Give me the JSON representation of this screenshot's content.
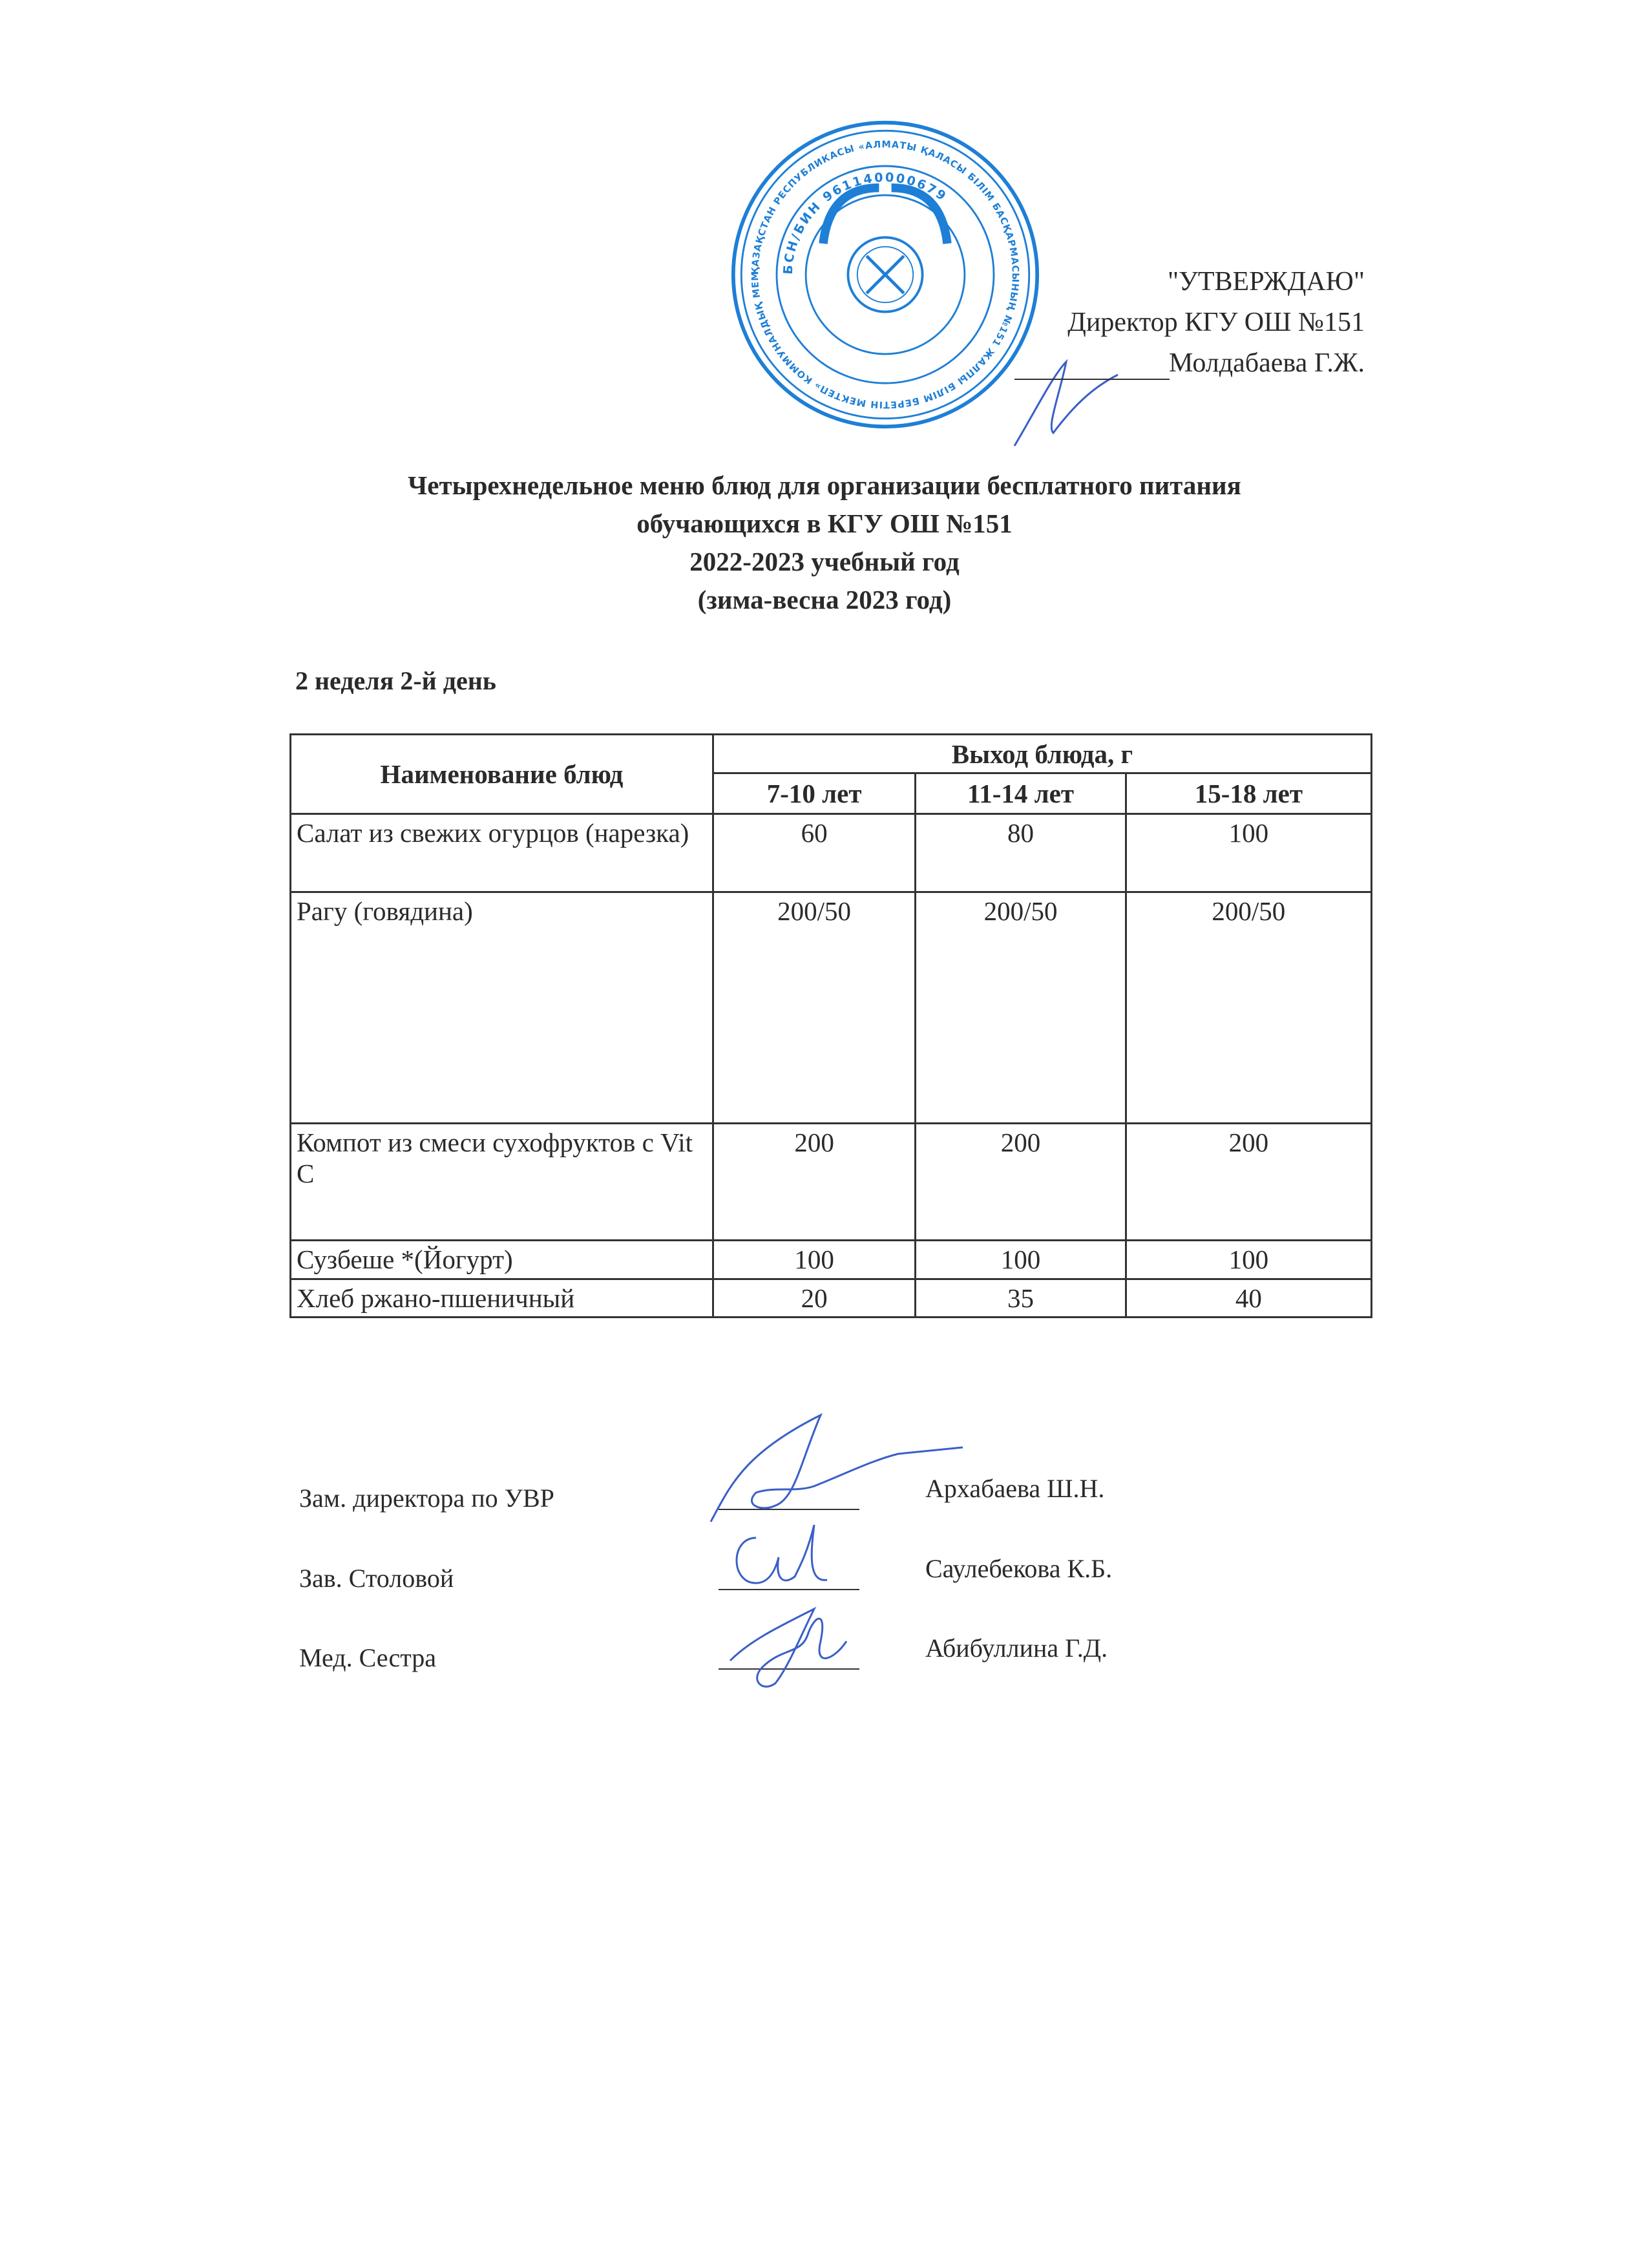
{
  "approval": {
    "line1": "\"УТВЕРЖДАЮ\"",
    "line2": "Директор КГУ ОШ №151",
    "line3": "Молдабаева Г.Ж."
  },
  "stamp": {
    "outer_text": "ҚАЗАҚСТАН РЕСПУБЛИКАСЫ «АЛМАТЫ ҚАЛАСЫ БІЛІМ БАСҚАРМАСЫНЫҢ №151 ЖАЛПЫ БІЛІМ БЕРЕТІН МЕКТЕП» КОММУНАЛДЫҚ МЕМЛЕКЕТТІК МЕКЕМЕСІ",
    "inner_text": "БСН/БИН 961140000679",
    "color": "#1e7fd6"
  },
  "title": {
    "line1": "Четырехнедельное меню блюд для организации бесплатного питания",
    "line2": "обучающихся в КГУ ОШ №151",
    "line3": "2022-2023 учебный год",
    "line4": "(зима-весна 2023 год)"
  },
  "day_label": "2 неделя 2-й день",
  "table": {
    "col_name": "Наименование блюд",
    "col_group": "Выход блюда, г",
    "age_groups": [
      "7-10 лет",
      "11-14 лет",
      "15-18 лет"
    ],
    "rows": [
      {
        "name": "Салат из свежих огурцов (нарезка)",
        "values": [
          "60",
          "80",
          "100"
        ]
      },
      {
        "name": "Рагу (говядина)",
        "values": [
          "200/50",
          "200/50",
          "200/50"
        ]
      },
      {
        "name": "Компот из смеси сухофруктов с Vit C",
        "values": [
          "200",
          "200",
          "200"
        ]
      },
      {
        "name": "Сузбеше *(Йогурт)",
        "values": [
          "100",
          "100",
          "100"
        ]
      },
      {
        "name": "Хлеб ржано-пшеничный",
        "values": [
          "20",
          "35",
          "40"
        ]
      }
    ]
  },
  "signatures": [
    {
      "role": "Зам. директора по УВР",
      "name": "Архабаева Ш.Н."
    },
    {
      "role": "Зав. Столовой",
      "name": "Саулебекова К.Б."
    },
    {
      "role": "Мед. Сестра",
      "name": "Абибуллина Г.Д."
    }
  ],
  "ink_color": "#3a5fc8"
}
